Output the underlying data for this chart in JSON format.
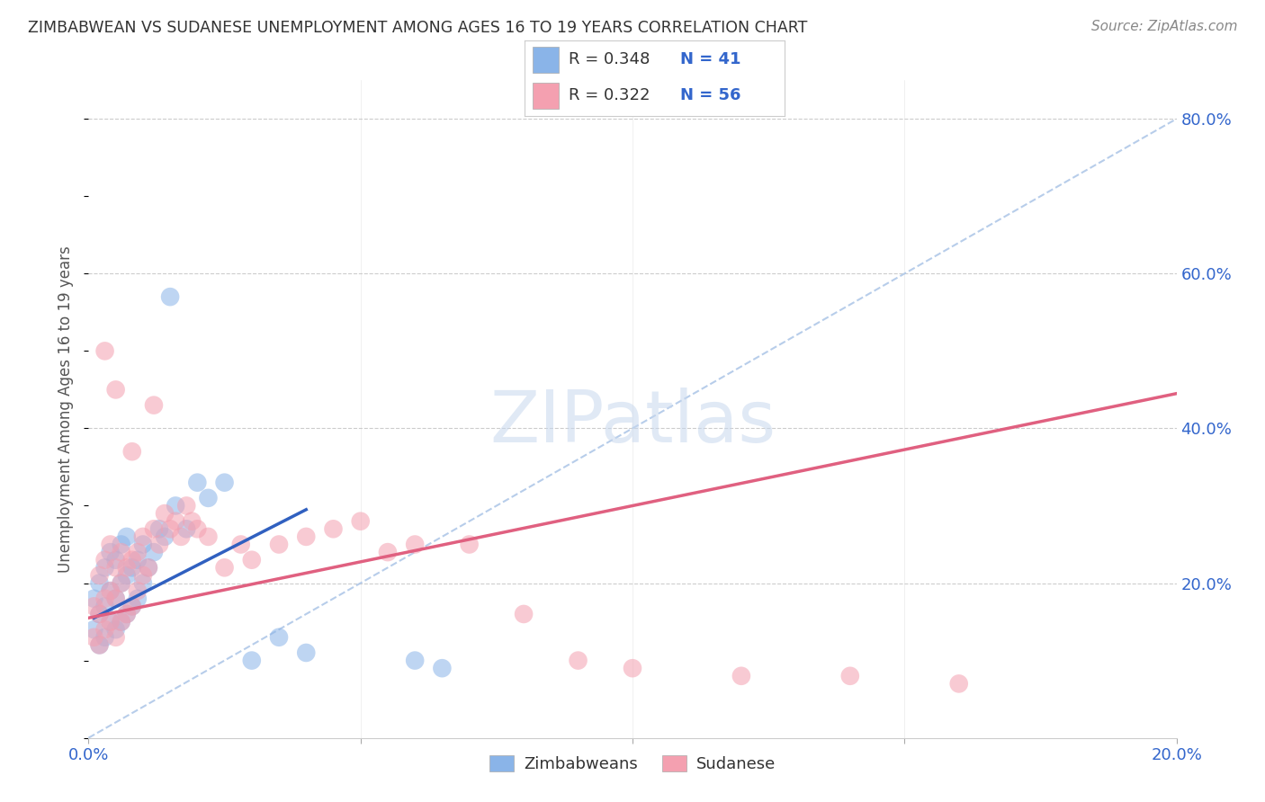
{
  "title": "ZIMBABWEAN VS SUDANESE UNEMPLOYMENT AMONG AGES 16 TO 19 YEARS CORRELATION CHART",
  "source": "Source: ZipAtlas.com",
  "ylabel": "Unemployment Among Ages 16 to 19 years",
  "xlim": [
    0.0,
    0.2
  ],
  "ylim": [
    0.0,
    0.85
  ],
  "zimbabwe_color": "#8ab4e8",
  "sudanese_color": "#f4a0b0",
  "zimbabwe_line_color": "#3060c0",
  "sudanese_line_color": "#e06080",
  "ref_line_color": "#b0c8e8",
  "watermark_color": "#c8d8ee",
  "zimbabwe_R": "0.348",
  "zimbabwe_N": "41",
  "sudanese_R": "0.322",
  "sudanese_N": "56",
  "zim_x": [
    0.001,
    0.001,
    0.002,
    0.002,
    0.002,
    0.003,
    0.003,
    0.003,
    0.004,
    0.004,
    0.004,
    0.005,
    0.005,
    0.005,
    0.006,
    0.006,
    0.006,
    0.007,
    0.007,
    0.007,
    0.008,
    0.008,
    0.009,
    0.009,
    0.01,
    0.01,
    0.011,
    0.012,
    0.013,
    0.014,
    0.015,
    0.016,
    0.018,
    0.02,
    0.022,
    0.025,
    0.03,
    0.035,
    0.04,
    0.06,
    0.065
  ],
  "zim_y": [
    0.14,
    0.18,
    0.12,
    0.16,
    0.2,
    0.13,
    0.17,
    0.22,
    0.15,
    0.19,
    0.24,
    0.14,
    0.18,
    0.23,
    0.15,
    0.2,
    0.25,
    0.16,
    0.21,
    0.26,
    0.17,
    0.22,
    0.18,
    0.23,
    0.2,
    0.25,
    0.22,
    0.24,
    0.27,
    0.26,
    0.57,
    0.3,
    0.27,
    0.33,
    0.31,
    0.33,
    0.1,
    0.13,
    0.11,
    0.1,
    0.09
  ],
  "sud_x": [
    0.001,
    0.001,
    0.002,
    0.002,
    0.002,
    0.003,
    0.003,
    0.003,
    0.004,
    0.004,
    0.004,
    0.005,
    0.005,
    0.005,
    0.006,
    0.006,
    0.006,
    0.007,
    0.007,
    0.008,
    0.008,
    0.009,
    0.009,
    0.01,
    0.01,
    0.011,
    0.012,
    0.013,
    0.014,
    0.015,
    0.016,
    0.017,
    0.018,
    0.019,
    0.02,
    0.022,
    0.025,
    0.028,
    0.03,
    0.035,
    0.04,
    0.045,
    0.05,
    0.055,
    0.06,
    0.07,
    0.08,
    0.09,
    0.1,
    0.12,
    0.14,
    0.16,
    0.003,
    0.005,
    0.008,
    0.012
  ],
  "sud_y": [
    0.13,
    0.17,
    0.12,
    0.16,
    0.21,
    0.14,
    0.18,
    0.23,
    0.15,
    0.19,
    0.25,
    0.13,
    0.18,
    0.22,
    0.15,
    0.2,
    0.24,
    0.16,
    0.22,
    0.17,
    0.23,
    0.19,
    0.24,
    0.21,
    0.26,
    0.22,
    0.27,
    0.25,
    0.29,
    0.27,
    0.28,
    0.26,
    0.3,
    0.28,
    0.27,
    0.26,
    0.22,
    0.25,
    0.23,
    0.25,
    0.26,
    0.27,
    0.28,
    0.24,
    0.25,
    0.25,
    0.16,
    0.1,
    0.09,
    0.08,
    0.08,
    0.07,
    0.5,
    0.45,
    0.37,
    0.43
  ],
  "zim_line_x": [
    0.001,
    0.04
  ],
  "zim_line_y": [
    0.155,
    0.295
  ],
  "sud_line_x": [
    0.0,
    0.2
  ],
  "sud_line_y": [
    0.155,
    0.445
  ]
}
